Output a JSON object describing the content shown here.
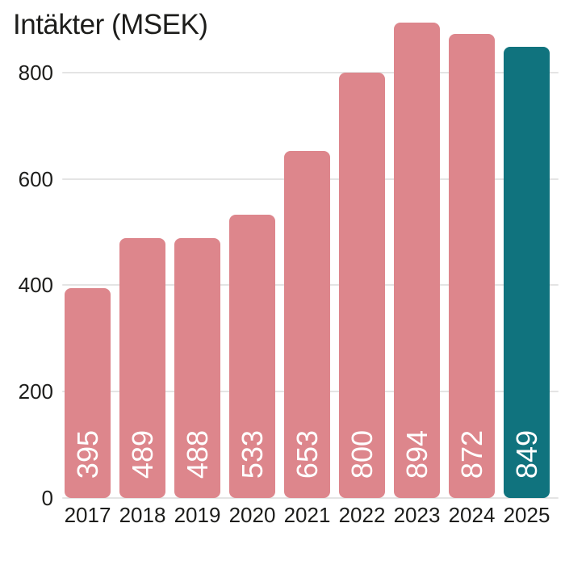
{
  "chart_data": {
    "type": "bar",
    "title": "Intäkter (MSEK)",
    "categories": [
      "2017",
      "2018",
      "2019",
      "2020",
      "2021",
      "2022",
      "2023",
      "2024",
      "2025"
    ],
    "values": [
      395,
      489,
      488,
      533,
      653,
      800,
      894,
      872,
      849
    ],
    "yticks": [
      0,
      200,
      400,
      600,
      800
    ],
    "ylim": [
      0,
      936
    ],
    "grid": "horizontal",
    "legend": "none",
    "highlight_category": "2025",
    "colors": {
      "bar": "#dd868c",
      "highlight_bar": "#10737e",
      "value_text": "#ffffff",
      "axis_text": "#1d1d1b",
      "gridline": "#e4e4e4",
      "background": "#ffffff"
    }
  }
}
